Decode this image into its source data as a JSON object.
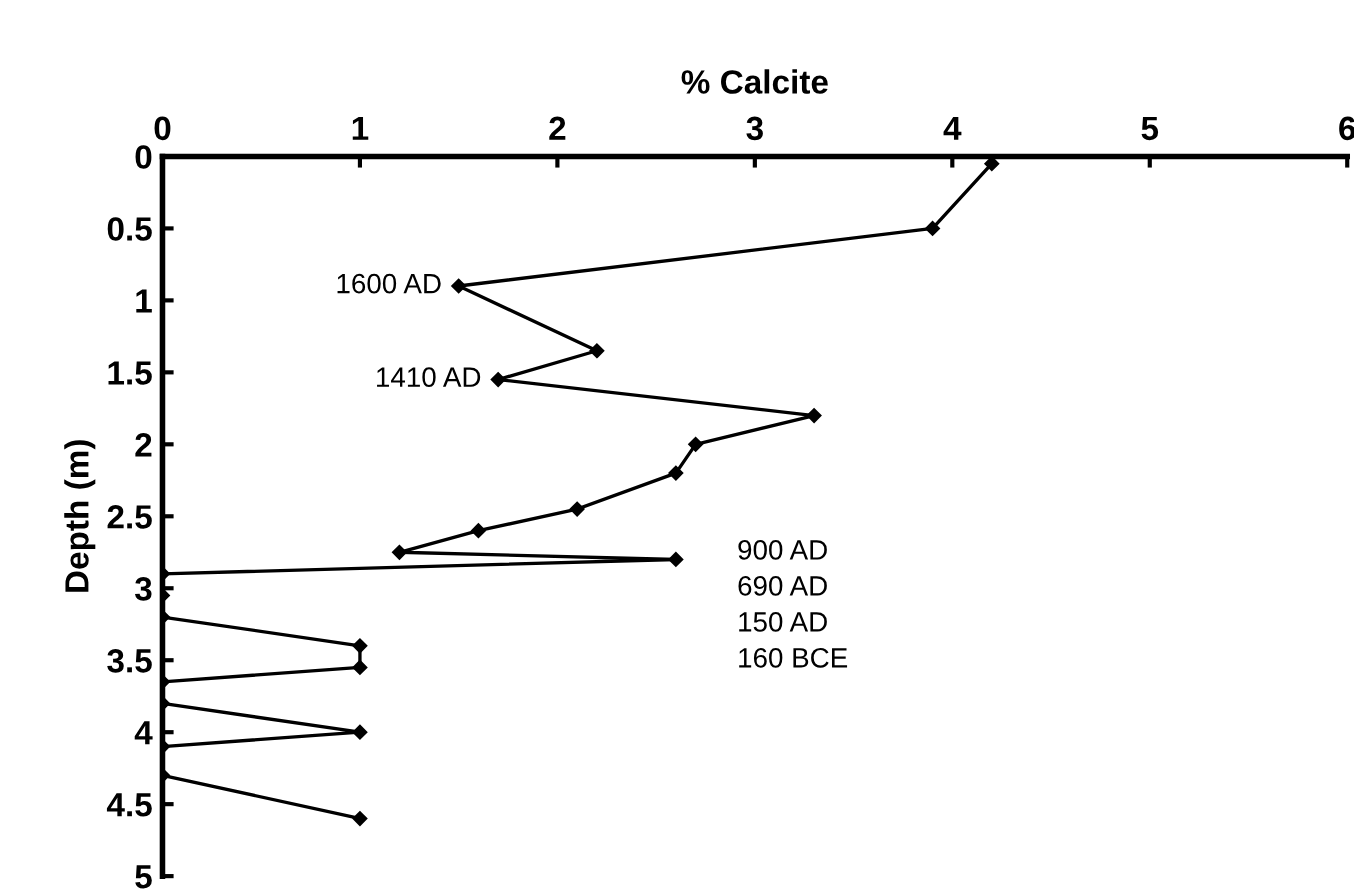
{
  "chart_data": {
    "type": "line",
    "xlabel": "% Calcite",
    "ylabel": "Depth (m)",
    "series": [
      {
        "color": "#000000",
        "x": [
          4.2,
          3.9,
          1.5,
          2.2,
          1.7,
          3.3,
          2.7,
          2.6,
          2.1,
          1.6,
          1.2,
          2.6,
          0,
          0,
          0,
          1,
          1,
          0,
          0,
          1,
          0,
          0,
          1
        ],
        "values": [
          0.05,
          0.5,
          0.9,
          1.35,
          1.55,
          1.8,
          2.0,
          2.2,
          2.45,
          2.6,
          2.75,
          2.8,
          2.9,
          3.05,
          3.2,
          3.4,
          3.55,
          3.65,
          3.8,
          4.0,
          4.1,
          4.3,
          4.6
        ]
      }
    ],
    "xlim": [
      0,
      6
    ],
    "xticks": [
      0,
      1,
      2,
      3,
      4,
      5,
      6
    ],
    "ylim": [
      5,
      0
    ],
    "yticks": [
      0,
      0.5,
      1,
      1.5,
      2,
      2.5,
      3,
      3.5,
      4,
      4.5,
      5
    ],
    "marker": "diamond",
    "line_style": "solid",
    "grid": false,
    "legend": false,
    "annotations": [
      {
        "text": "1600 AD",
        "x": 1.5,
        "y": 0.9
      },
      {
        "text": "1410 AD",
        "x": 1.7,
        "y": 1.55
      },
      "900 AD",
      "690 AD",
      "150 AD",
      "160 BCE"
    ]
  }
}
